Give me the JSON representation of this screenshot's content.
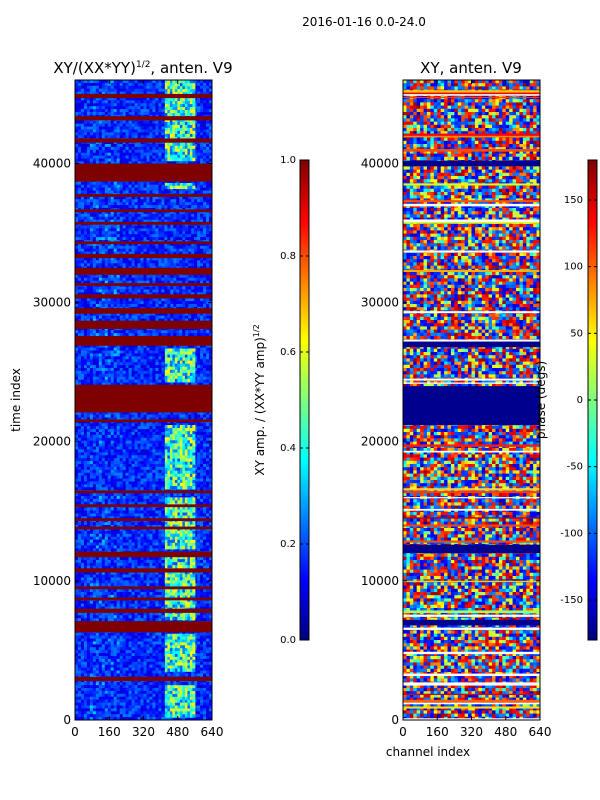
{
  "suptitle": "2016-01-16 0.0-24.0",
  "colors": {
    "background": "#ffffff",
    "frame": "#000000",
    "jet_stops": [
      "#00007f",
      "#0000ff",
      "#007fff",
      "#00ffff",
      "#7fff7f",
      "#ffff00",
      "#ff7f00",
      "#ff0000",
      "#7f0000"
    ]
  },
  "chart_data": [
    {
      "type": "heatmap",
      "title_main": "XY/(XX*YY)",
      "title_exp": "1/2",
      "title_suffix": ", anten. V9",
      "xlabel": "",
      "ylabel": "time index",
      "xlim": [
        0,
        640
      ],
      "ylim": [
        0,
        46000
      ],
      "xticks": [
        "0",
        "160",
        "320",
        "480",
        "640"
      ],
      "yticks": [
        "0",
        "10000",
        "20000",
        "30000",
        "40000"
      ],
      "colorbar": {
        "label_main": "XY amp. / (XX*YY amp)",
        "label_exp": "1/2",
        "range": [
          0.0,
          1.0
        ],
        "ticks": [
          "0.0",
          "0.2",
          "0.4",
          "0.6",
          "0.8",
          "1.0"
        ]
      },
      "saturated_bands_time_index": [
        [
          2800,
          3100
        ],
        [
          6300,
          7100
        ],
        [
          7700,
          8000
        ],
        [
          8600,
          8800
        ],
        [
          9400,
          9600
        ],
        [
          10600,
          10900
        ],
        [
          11700,
          12100
        ],
        [
          13700,
          13900
        ],
        [
          14300,
          14500
        ],
        [
          15300,
          15500
        ],
        [
          16300,
          16500
        ],
        [
          21400,
          21600
        ],
        [
          22100,
          24100
        ],
        [
          26900,
          27600
        ],
        [
          28100,
          28700
        ],
        [
          29200,
          29600
        ],
        [
          30300,
          30600
        ],
        [
          31200,
          31400
        ],
        [
          32000,
          32500
        ],
        [
          33200,
          33500
        ],
        [
          34200,
          34400
        ],
        [
          35600,
          35800
        ],
        [
          36500,
          36700
        ],
        [
          37600,
          37800
        ],
        [
          38700,
          40000
        ],
        [
          41500,
          41800
        ],
        [
          43100,
          43400
        ],
        [
          44700,
          45000
        ]
      ],
      "bright_channel_range": [
        420,
        560
      ],
      "bright_time_segments": [
        [
          200,
          2500
        ],
        [
          3500,
          6200
        ],
        [
          7200,
          12000
        ],
        [
          12300,
          16000
        ],
        [
          16600,
          21200
        ],
        [
          24300,
          26700
        ],
        [
          38200,
          38600
        ],
        [
          40200,
          46200
        ]
      ]
    },
    {
      "type": "heatmap",
      "title_main": "XY, anten. V9",
      "xlabel": "channel index",
      "ylabel": "",
      "xlim": [
        0,
        640
      ],
      "ylim": [
        0,
        46000
      ],
      "xticks": [
        "0",
        "160",
        "320",
        "480",
        "640"
      ],
      "yticks": [
        "0",
        "10000",
        "20000",
        "30000",
        "40000"
      ],
      "colorbar": {
        "label": "phase (degs)",
        "range": [
          -180,
          180
        ],
        "ticks": [
          "-150",
          "-100",
          "-50",
          "0",
          "50",
          "100",
          "150"
        ]
      },
      "blank_bands_time_index": [
        [
          6800,
          7200
        ],
        [
          12000,
          12600
        ],
        [
          21200,
          24000
        ],
        [
          26800,
          27200
        ],
        [
          39800,
          40200
        ]
      ]
    }
  ]
}
